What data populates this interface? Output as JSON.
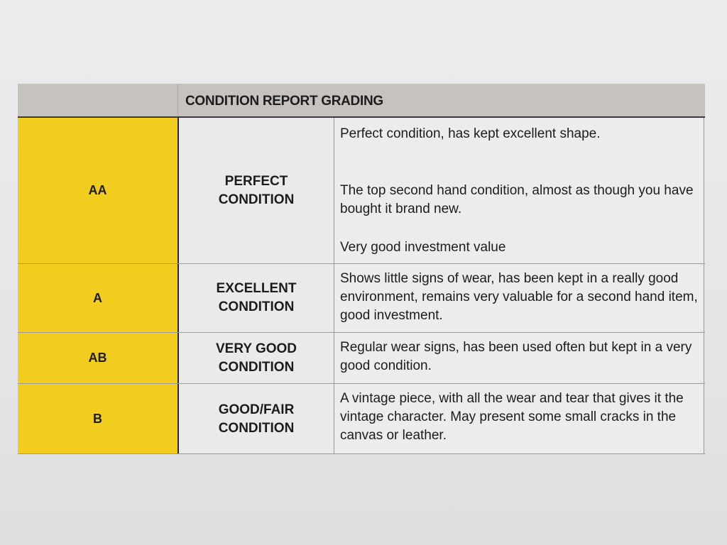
{
  "header": {
    "title": "CONDITION REPORT GRADING"
  },
  "rows": [
    {
      "grade": "AA",
      "condition": [
        "PERFECT",
        "CONDITION"
      ],
      "description": [
        "Perfect condition, has kept excellent shape.",
        "The top second hand condition, almost as though you have bought it brand new.",
        "Very good investment value"
      ]
    },
    {
      "grade": "A",
      "condition": [
        "EXCELLENT",
        "CONDITION"
      ],
      "description": [
        "Shows little signs of wear, has been kept in a really good environment, remains very valuable for a second hand item, good investment."
      ]
    },
    {
      "grade": "AB",
      "condition": [
        "VERY GOOD",
        "CONDITION"
      ],
      "description": [
        "Regular wear signs, has been used often but kept in a very good condition."
      ]
    },
    {
      "grade": "B",
      "condition": [
        "GOOD/FAIR",
        "CONDITION"
      ],
      "description": [
        "A vintage piece, with all the wear and tear that gives it the vintage character. May present some small cracks in the canvas or leather."
      ]
    }
  ],
  "colors": {
    "grade_fill": "#f2cc1e",
    "header_fill": "#c6c3bf"
  }
}
